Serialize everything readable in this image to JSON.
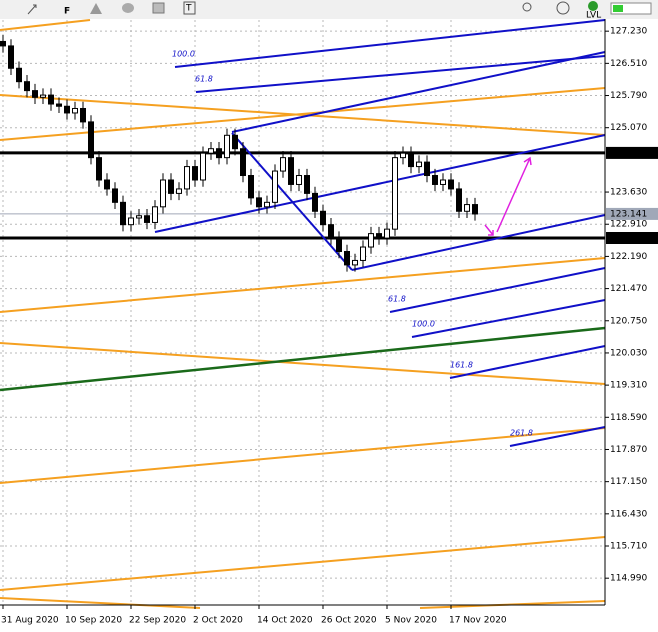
{
  "toolbar": [
    "F",
    "T",
    "LVL"
  ],
  "chart_data": {
    "type": "candlestick",
    "categories": [
      "31 Aug 2020",
      null,
      null,
      null,
      null,
      null,
      null,
      null,
      "10 Sep 2020",
      null,
      null,
      null,
      null,
      null,
      null,
      null,
      "22 Sep 2020",
      null,
      null,
      null,
      null,
      null,
      null,
      null,
      "2 Oct 2020",
      null,
      null,
      null,
      null,
      null,
      null,
      null,
      "14 Oct 2020",
      null,
      null,
      null,
      null,
      null,
      null,
      null,
      "26 Oct 2020",
      null,
      null,
      null,
      null,
      null,
      null,
      null,
      "5 Nov 2020",
      null,
      null,
      null,
      null,
      null,
      null,
      null,
      "17 Nov 2020",
      null,
      null,
      null
    ],
    "open": [
      127.0,
      126.9,
      126.4,
      126.1,
      125.9,
      125.75,
      125.8,
      125.6,
      125.55,
      125.4,
      125.5,
      125.2,
      124.4,
      123.9,
      123.7,
      123.4,
      122.9,
      123.05,
      123.1,
      122.95,
      123.3,
      123.9,
      123.6,
      123.7,
      124.2,
      123.9,
      124.5,
      124.6,
      124.4,
      124.9,
      124.6,
      124.0,
      123.5,
      123.3,
      123.4,
      124.1,
      124.4,
      123.8,
      124.0,
      123.6,
      123.2,
      122.9,
      122.6,
      122.3,
      122.0,
      122.1,
      122.4,
      122.7,
      122.6,
      122.8,
      124.4,
      124.5,
      124.2,
      124.3,
      124.0,
      123.8,
      123.9,
      123.7,
      123.2,
      123.35
    ],
    "high": [
      127.15,
      127.05,
      126.55,
      126.25,
      126.05,
      125.95,
      125.95,
      125.75,
      125.7,
      125.65,
      125.65,
      125.35,
      124.55,
      124.05,
      123.85,
      123.55,
      123.2,
      123.25,
      123.25,
      123.45,
      124.05,
      124.05,
      123.85,
      124.35,
      124.35,
      124.65,
      124.75,
      124.75,
      125.05,
      125.05,
      124.75,
      124.15,
      123.65,
      123.55,
      124.25,
      124.55,
      124.55,
      124.15,
      124.15,
      123.75,
      123.35,
      123.05,
      122.75,
      122.45,
      122.25,
      122.55,
      122.85,
      122.85,
      122.95,
      124.55,
      124.65,
      124.65,
      124.45,
      124.45,
      124.15,
      124.05,
      124.05,
      123.85,
      123.5,
      123.5
    ],
    "low": [
      126.75,
      126.25,
      125.95,
      125.75,
      125.6,
      125.6,
      125.45,
      125.4,
      125.25,
      125.25,
      125.05,
      124.25,
      123.75,
      123.55,
      123.25,
      122.75,
      122.75,
      122.9,
      122.8,
      122.8,
      123.15,
      123.45,
      123.45,
      123.55,
      123.75,
      123.75,
      124.35,
      124.25,
      124.25,
      124.45,
      123.85,
      123.35,
      123.15,
      123.15,
      123.25,
      123.95,
      123.65,
      123.65,
      123.45,
      123.05,
      122.75,
      122.45,
      122.15,
      121.85,
      121.85,
      121.95,
      122.25,
      122.45,
      122.45,
      122.65,
      124.25,
      124.05,
      124.05,
      123.85,
      123.65,
      123.65,
      123.55,
      123.05,
      123.05,
      122.99
    ],
    "close": [
      126.9,
      126.4,
      126.1,
      125.9,
      125.75,
      125.8,
      125.6,
      125.55,
      125.4,
      125.5,
      125.2,
      124.4,
      123.9,
      123.7,
      123.4,
      122.9,
      123.05,
      123.1,
      122.95,
      123.3,
      123.9,
      123.6,
      123.7,
      124.2,
      123.9,
      124.5,
      124.6,
      124.4,
      124.9,
      124.6,
      124.0,
      123.5,
      123.3,
      123.4,
      124.1,
      124.4,
      123.8,
      124.0,
      123.6,
      123.2,
      122.9,
      122.6,
      122.3,
      122.0,
      122.1,
      122.4,
      122.7,
      122.6,
      122.8,
      124.4,
      124.5,
      124.2,
      124.3,
      124.0,
      123.8,
      123.9,
      123.7,
      123.2,
      123.35,
      123.14
    ],
    "up_color": "#ffffff",
    "down_color": "#000000",
    "ylim": [
      114.39,
      127.48
    ],
    "yticks": [
      {
        "value": 127.23,
        "label": "127.230"
      },
      {
        "value": 126.51,
        "label": "126.510"
      },
      {
        "value": 125.79,
        "label": "125.790"
      },
      {
        "value": 125.07,
        "label": "125.070"
      },
      {
        "value": 123.63,
        "label": "123.630"
      },
      {
        "value": 122.91,
        "label": "122.910"
      },
      {
        "value": 122.19,
        "label": "122.190"
      },
      {
        "value": 121.47,
        "label": "121.470"
      },
      {
        "value": 120.75,
        "label": "120.750"
      },
      {
        "value": 120.03,
        "label": "120.030"
      },
      {
        "value": 119.31,
        "label": "119.310"
      },
      {
        "value": 118.59,
        "label": "118.590"
      },
      {
        "value": 117.87,
        "label": "117.870"
      },
      {
        "value": 117.15,
        "label": "117.150"
      },
      {
        "value": 116.43,
        "label": "116.430"
      },
      {
        "value": 115.71,
        "label": "115.710"
      },
      {
        "value": 114.99,
        "label": "114.990"
      }
    ],
    "grid": true,
    "hlines": [
      {
        "value": 124.506,
        "color": "#000000"
      },
      {
        "value": 123.141,
        "color": "#a0a8b8"
      },
      {
        "value": 122.602,
        "color": "#000000"
      }
    ],
    "annotations": [
      "100.0",
      "61.8",
      "61.8",
      "100.0",
      "161.8",
      "261.8"
    ]
  }
}
